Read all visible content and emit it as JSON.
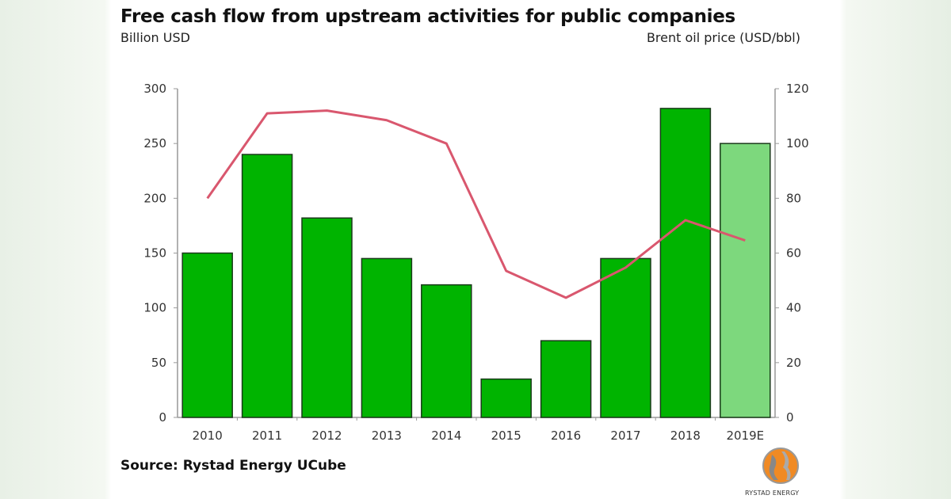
{
  "chart_data": {
    "type": "bar+line",
    "title": "Free cash flow from upstream activities for public companies",
    "ylabel": "Billion USD",
    "y2label": "Brent oil price (USD/bbl)",
    "categories": [
      "2010",
      "2011",
      "2012",
      "2013",
      "2014",
      "2015",
      "2016",
      "2017",
      "2018",
      "2019E"
    ],
    "ylim": [
      0,
      300
    ],
    "y2lim": [
      0,
      120
    ],
    "yticks": [
      0,
      50,
      100,
      150,
      200,
      250,
      300
    ],
    "y2ticks": [
      0,
      20,
      40,
      60,
      80,
      100,
      120
    ],
    "grid": false,
    "series": [
      {
        "type": "bar",
        "axis": "left",
        "values": [
          150,
          240,
          182,
          145,
          121,
          35,
          70,
          145,
          282,
          250
        ],
        "color": "#00b400",
        "estimate_color": "#7dd87d"
      },
      {
        "type": "line",
        "axis": "right",
        "values": [
          80,
          111,
          112,
          108.5,
          100,
          53.5,
          43.7,
          54.7,
          72,
          64.6
        ],
        "color": "#d9576e"
      }
    ]
  },
  "source": "Source: Rystad Energy UCube",
  "logo_text": "RYSTAD ENERGY"
}
